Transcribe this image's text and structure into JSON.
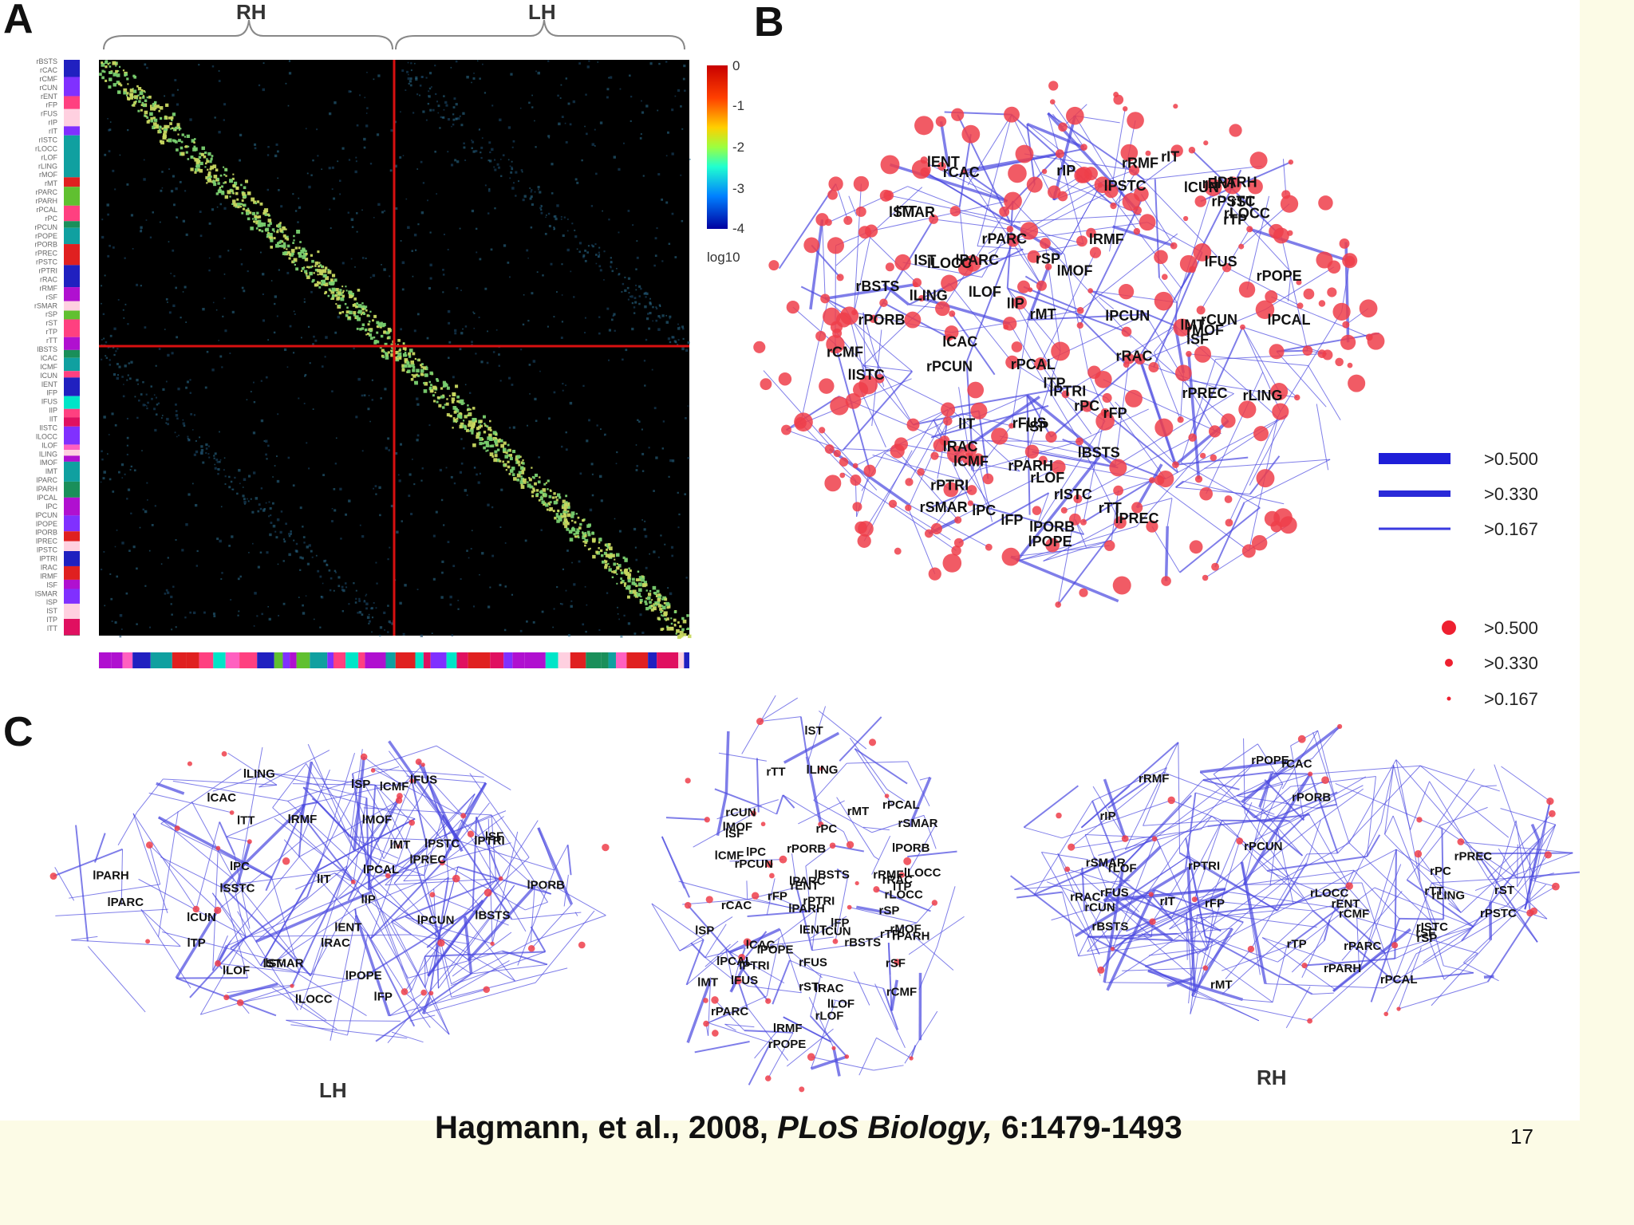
{
  "figure": {
    "panels": {
      "a": "A",
      "b": "B",
      "c": "C"
    },
    "hemispheres_top": {
      "right": "RH",
      "left": "LH"
    },
    "hemispheres_bottom": {
      "left": "LH",
      "right": "RH"
    },
    "colorbar": {
      "ticks": [
        "0",
        "-1",
        "-2",
        "-3",
        "-4"
      ],
      "unit_label": "log10"
    },
    "edge_legend": [
      ">0.500",
      ">0.330",
      ">0.167"
    ],
    "node_legend": [
      ">0.500",
      ">0.330",
      ">0.167"
    ],
    "labels_b": [
      "rPORB",
      "lLOF",
      "lMOF",
      "rRMF",
      "rLOF",
      "rPTRI",
      "lPORB",
      "lFP",
      "rMOF",
      "rFP",
      "rTP",
      "lRMF",
      "lPTRI",
      "lRAC",
      "rRAC",
      "lST",
      "rPOPE",
      "lPOPE",
      "lSF",
      "lENT",
      "rCMF",
      "rPREC",
      "rPSTC",
      "rSMAR",
      "rST",
      "lCMF",
      "rCAC",
      "lCAC",
      "rTT",
      "rENT",
      "rPARH",
      "rMT",
      "rPARC",
      "lSMAR",
      "lPREC",
      "rPC",
      "lIT",
      "lBSTS",
      "lPC",
      "rBSTS",
      "lMT",
      "lPSTC",
      "lIP",
      "lPARC",
      "rPCUN",
      "rSP",
      "rIP",
      "rIT",
      "lTP",
      "lPARH",
      "lTT",
      "lISTC",
      "rISTC",
      "lFUS",
      "lPCUN",
      "rLOCC",
      "lLOCC",
      "lSP",
      "lCUN",
      "rCUN",
      "lPCAL",
      "rPCAL",
      "rFUS",
      "lLING",
      "rLING"
    ],
    "labels_c_left": [
      "lSF",
      "lCMF",
      "lPARC",
      "lPREC",
      "lPSTC",
      "lPC",
      "lRMF",
      "lCAC",
      "lSP",
      "lFP",
      "lRAC",
      "lPOPE",
      "lPTRI",
      "lSMAR",
      "lSSTC",
      "lPCUN",
      "lIP",
      "lPORB",
      "lMOF",
      "lLOF",
      "lTT",
      "lCUN",
      "lST",
      "lBSTS",
      "lMT",
      "lPARH",
      "lLING",
      "lPCAL",
      "lLOCC",
      "lFUS",
      "lIT",
      "lTP",
      "lENT"
    ],
    "labels_c_mid": [
      "lFP",
      "rFP",
      "lPORB",
      "lMOF",
      "rMOF",
      "rPORB",
      "lRMF",
      "lLOF",
      "rLOF",
      "rRMF",
      "lPTRI",
      "lRAC",
      "rRAC",
      "rPTRI",
      "lTP",
      "lSF",
      "lCAC",
      "rCAC",
      "rSF",
      "rTP",
      "lPOPE",
      "lENT",
      "rENT",
      "rPOPE",
      "lCMF",
      "rCMF",
      "lST",
      "rST",
      "lMT",
      "lPARH",
      "lPC",
      "rPC",
      "rPARH",
      "rTT",
      "rMT",
      "lBSTS",
      "lFUS",
      "lPARC",
      "rPARC",
      "rFUS",
      "rSMAR",
      "rBSTS",
      "lLING",
      "rPCUN",
      "lSP",
      "rSP",
      "lPCAL",
      "rPCAL",
      "lLOCC",
      "rLOCC",
      "lCUN",
      "rCUN"
    ],
    "labels_c_right": [
      "rPARC",
      "rCMF",
      "rSF",
      "rPSTC",
      "rPREC",
      "rSP",
      "rPC",
      "rPCUN",
      "rSMAR",
      "rCAC",
      "rRMF",
      "rIP",
      "rISTC",
      "rPOPE",
      "rRAC",
      "rFP",
      "rCUN",
      "rBSTS",
      "rTT",
      "rPTRI",
      "rPCAL",
      "rST",
      "rLOF",
      "rPORB",
      "rLOCC",
      "rLING",
      "rMT",
      "rPARH",
      "rFUS",
      "rIT",
      "rENT",
      "rTP"
    ],
    "matrix_row_labels": [
      "rBSTS",
      "rCAC",
      "rCMF",
      "rCUN",
      "rENT",
      "rFP",
      "rFUS",
      "rIP",
      "rIT",
      "rISTC",
      "rLOCC",
      "rLOF",
      "rLING",
      "rMOF",
      "rMT",
      "rPARC",
      "rPARH",
      "rPCAL",
      "rPC",
      "rPCUN",
      "rPOPE",
      "rPORB",
      "rPREC",
      "rPSTC",
      "rPTRI",
      "rRAC",
      "rRMF",
      "rSF",
      "rSMAR",
      "rSP",
      "rST",
      "rTP",
      "rTT",
      "lBSTS",
      "lCAC",
      "lCMF",
      "lCUN",
      "lENT",
      "lFP",
      "lFUS",
      "lIP",
      "lIT",
      "lISTC",
      "lLOCC",
      "lLOF",
      "lLING",
      "lMOF",
      "lMT",
      "lPARC",
      "lPARH",
      "lPCAL",
      "lPC",
      "lPCUN",
      "lPOPE",
      "lPORB",
      "lPREC",
      "lPSTC",
      "lPTRI",
      "lRAC",
      "lRMF",
      "lSF",
      "lSMAR",
      "lSP",
      "lST",
      "lTP",
      "lTT"
    ],
    "colors": {
      "edge": "#4a48e0",
      "node": "#ee3e4a",
      "divider": "#d81010",
      "matrix_bg": "#000000",
      "slide_bg": "#fcfbe6"
    }
  },
  "citation": {
    "authors": "Hagmann, et al., 2008,",
    "journal": "PLoS Biology,",
    "volume_pages": "6:1479-1493"
  },
  "slide_number": "17"
}
